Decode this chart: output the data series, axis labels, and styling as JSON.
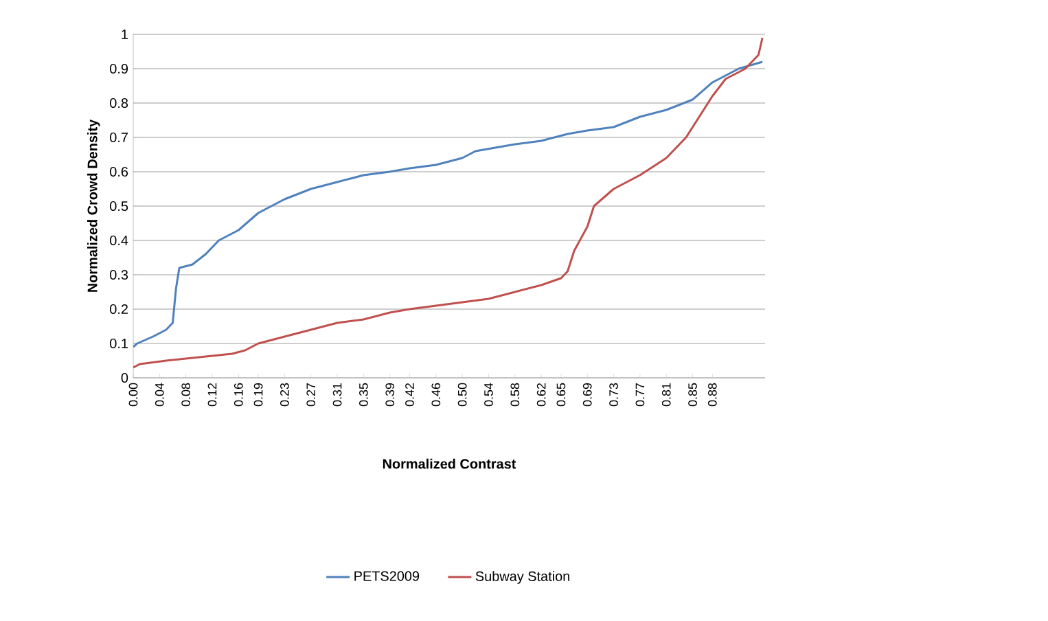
{
  "chart_data": {
    "type": "line",
    "xlabel": "Normalized Contrast",
    "ylabel": "Normalized Crowd Density",
    "xlim": [
      0,
      0.96
    ],
    "ylim": [
      0,
      1
    ],
    "xticks": [
      {
        "value": 0,
        "label": "0.00"
      },
      {
        "value": 0.04,
        "label": "0.04"
      },
      {
        "value": 0.08,
        "label": "0.08"
      },
      {
        "value": 0.12,
        "label": "0.12"
      },
      {
        "value": 0.16,
        "label": "0.16"
      },
      {
        "value": 0.19,
        "label": "0.19"
      },
      {
        "value": 0.23,
        "label": "0.23"
      },
      {
        "value": 0.27,
        "label": "0.27"
      },
      {
        "value": 0.31,
        "label": "0.31"
      },
      {
        "value": 0.35,
        "label": "0.35"
      },
      {
        "value": 0.39,
        "label": "0.39"
      },
      {
        "value": 0.42,
        "label": "0.42"
      },
      {
        "value": 0.46,
        "label": "0.46"
      },
      {
        "value": 0.5,
        "label": "0.50"
      },
      {
        "value": 0.54,
        "label": "0.54"
      },
      {
        "value": 0.58,
        "label": "0.58"
      },
      {
        "value": 0.62,
        "label": "0.62"
      },
      {
        "value": 0.65,
        "label": "0.65"
      },
      {
        "value": 0.69,
        "label": "0.69"
      },
      {
        "value": 0.73,
        "label": "0.73"
      },
      {
        "value": 0.77,
        "label": "0.77"
      },
      {
        "value": 0.81,
        "label": "0.81"
      },
      {
        "value": 0.85,
        "label": "0.85"
      },
      {
        "value": 0.88,
        "label": "0.88"
      }
    ],
    "yticks": [
      0,
      0.1,
      0.2,
      0.3,
      0.4,
      0.5,
      0.6,
      0.7,
      0.8,
      0.9,
      1
    ],
    "grid": "y",
    "legend": "bottom",
    "marker": "none",
    "series": [
      {
        "name": "PETS2009",
        "color": "#4f81bd",
        "x": [
          0,
          0.006,
          0.03,
          0.05,
          0.06,
          0.065,
          0.07,
          0.09,
          0.11,
          0.13,
          0.16,
          0.19,
          0.23,
          0.27,
          0.31,
          0.35,
          0.39,
          0.42,
          0.46,
          0.5,
          0.52,
          0.58,
          0.62,
          0.66,
          0.69,
          0.73,
          0.77,
          0.81,
          0.85,
          0.88,
          0.92,
          0.956
        ],
        "values": [
          0.09,
          0.1,
          0.12,
          0.14,
          0.16,
          0.26,
          0.32,
          0.33,
          0.36,
          0.4,
          0.43,
          0.48,
          0.52,
          0.55,
          0.57,
          0.59,
          0.6,
          0.61,
          0.62,
          0.64,
          0.66,
          0.68,
          0.69,
          0.71,
          0.72,
          0.73,
          0.76,
          0.78,
          0.81,
          0.86,
          0.9,
          0.92
        ]
      },
      {
        "name": "Subway Station",
        "color": "#c0504d",
        "x": [
          0,
          0.01,
          0.05,
          0.1,
          0.15,
          0.17,
          0.19,
          0.23,
          0.27,
          0.31,
          0.35,
          0.39,
          0.42,
          0.46,
          0.5,
          0.54,
          0.58,
          0.62,
          0.65,
          0.66,
          0.67,
          0.69,
          0.7,
          0.73,
          0.77,
          0.81,
          0.84,
          0.86,
          0.88,
          0.9,
          0.93,
          0.95,
          0.956
        ],
        "values": [
          0.03,
          0.04,
          0.05,
          0.06,
          0.07,
          0.08,
          0.1,
          0.12,
          0.14,
          0.16,
          0.17,
          0.19,
          0.2,
          0.21,
          0.22,
          0.23,
          0.25,
          0.27,
          0.29,
          0.31,
          0.37,
          0.44,
          0.5,
          0.55,
          0.59,
          0.64,
          0.7,
          0.76,
          0.82,
          0.87,
          0.9,
          0.94,
          0.99
        ]
      }
    ]
  }
}
